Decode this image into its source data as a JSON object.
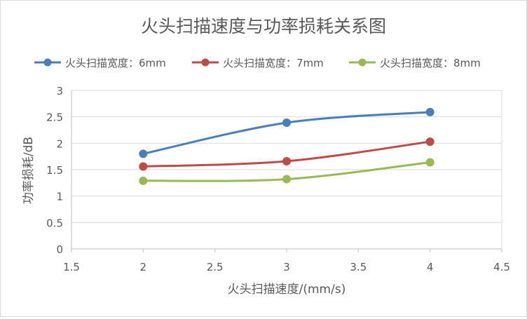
{
  "chart_data": {
    "type": "line",
    "title": "火头扫描速度与功率损耗关系图",
    "xlabel": "火头扫描速度/(mm/s)",
    "ylabel": "功率损耗/dB",
    "xlim": [
      1.5,
      4.5
    ],
    "ylim": [
      0,
      3
    ],
    "xticks": [
      "1.5",
      "2",
      "2.5",
      "3",
      "3.5",
      "4",
      "4.5"
    ],
    "yticks": [
      "0",
      "0.5",
      "1",
      "1.5",
      "2",
      "2.5",
      "3"
    ],
    "grid": "horizontal",
    "legend_position": "top",
    "x": [
      2,
      3,
      4
    ],
    "series": [
      {
        "name": "火头扫描宽度：6mm",
        "values": [
          1.8,
          2.39,
          2.59
        ],
        "color": "#4a7ebb"
      },
      {
        "name": "火头扫描宽度：7mm",
        "values": [
          1.56,
          1.66,
          2.03
        ],
        "color": "#be4b48"
      },
      {
        "name": "火头扫描宽度：8mm",
        "values": [
          1.29,
          1.32,
          1.64
        ],
        "color": "#98b954"
      }
    ]
  }
}
